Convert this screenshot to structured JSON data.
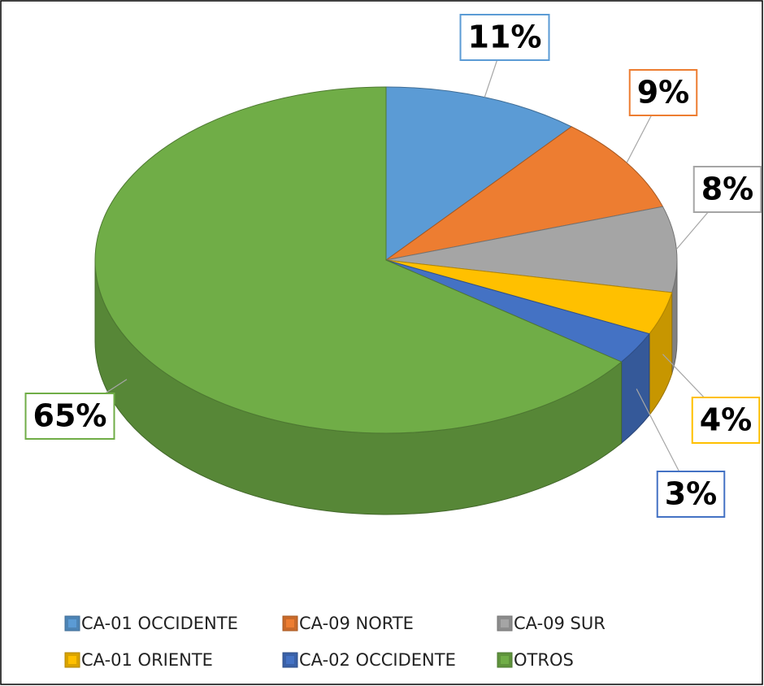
{
  "chart_data": {
    "type": "pie",
    "categories": [
      "CA-01 OCCIDENTE",
      "CA-09 NORTE",
      "CA-09 SUR",
      "CA-01 ORIENTE",
      "CA-02 OCCIDENTE",
      "OTROS"
    ],
    "values": [
      11,
      9,
      8,
      4,
      3,
      65
    ],
    "value_labels": [
      "11%",
      "9%",
      "8%",
      "4%",
      "3%",
      "65%"
    ],
    "colors": [
      "#5b9bd5",
      "#ed7d31",
      "#a5a5a5",
      "#ffc000",
      "#4472c4",
      "#70ad47"
    ],
    "legend": "bottom"
  }
}
